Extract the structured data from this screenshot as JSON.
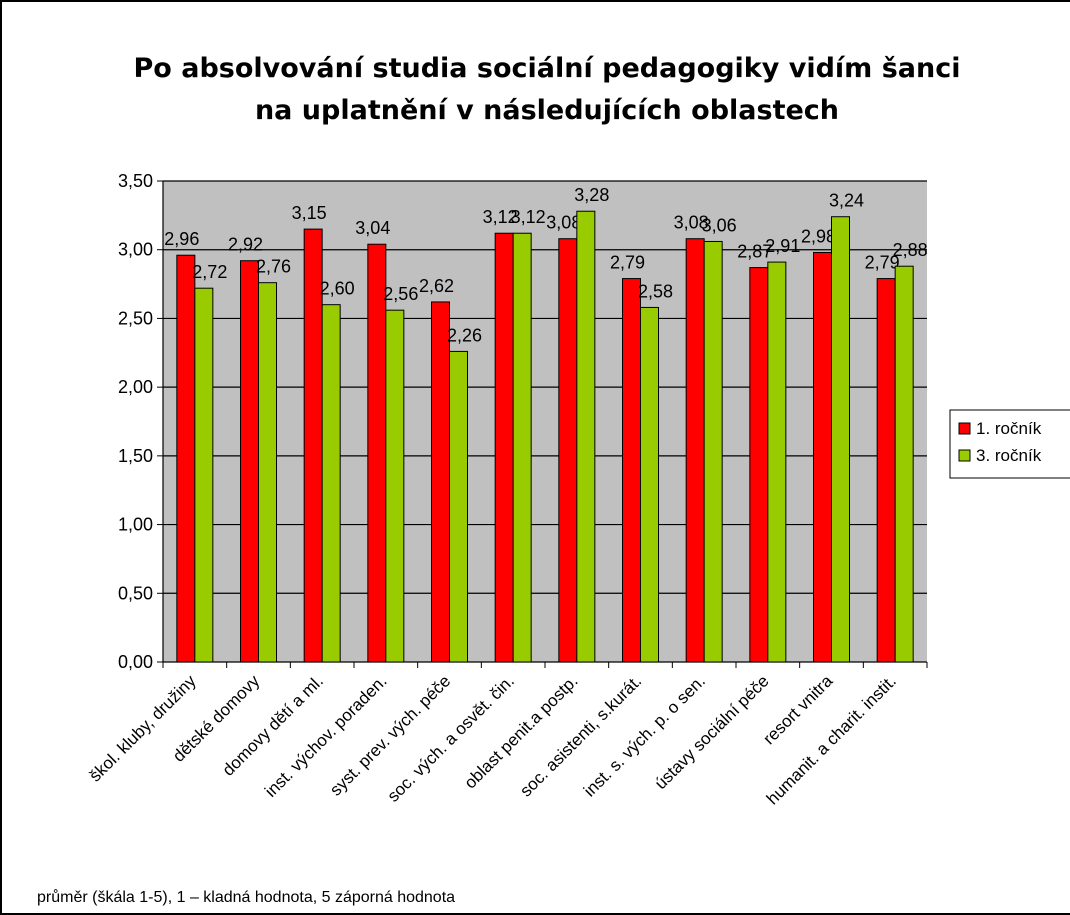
{
  "chart_data": {
    "type": "bar",
    "title_lines": [
      "Po absolvování studia sociální pedagogiky vidím šanci",
      "na uplatnění v následujících oblastech"
    ],
    "categories": [
      "škol. kluby, družiny",
      "dětské domovy",
      "domovy dětí a ml.",
      "inst. výchov. poraden.",
      "syst. prev. vých. péče",
      "soc. vých. a osvět. čin.",
      "oblast penit.a postp.",
      "soc. asistenti, s.kurát.",
      "inst. s. vých. p. o sen.",
      "ústavy sociální péče",
      "resort vnitra",
      "humanit. a charit. instit."
    ],
    "series": [
      {
        "name": "1. ročník",
        "color": "#ff0000",
        "values": [
          2.96,
          2.92,
          3.15,
          3.04,
          2.62,
          3.12,
          3.08,
          2.79,
          3.08,
          2.87,
          2.98,
          2.79
        ],
        "labels": [
          "2,96",
          "2,92",
          "3,15",
          "3,04",
          "2,62",
          "3,12",
          "3,08",
          "2,79",
          "3,08",
          "2,87",
          "2,98",
          "2,79"
        ]
      },
      {
        "name": "3. ročník",
        "color": "#99cc00",
        "values": [
          2.72,
          2.76,
          2.6,
          2.56,
          2.26,
          3.12,
          3.28,
          2.58,
          3.06,
          2.91,
          3.24,
          2.88
        ],
        "labels": [
          "2,72",
          "2,76",
          "2,60",
          "2,56",
          "2,26",
          "3,12",
          "3,28",
          "2,58",
          "3,06",
          "2,91",
          "3,24",
          "2,88"
        ]
      }
    ],
    "ylim": [
      0,
      3.5
    ],
    "yticks": [
      0,
      0.5,
      1.0,
      1.5,
      2.0,
      2.5,
      3.0,
      3.5
    ],
    "ytick_labels": [
      "0,00",
      "0,50",
      "1,00",
      "1,50",
      "2,00",
      "2,50",
      "3,00",
      "3,50"
    ],
    "plot_background": "#c0c0c0",
    "grid": true,
    "legend_position": "right"
  },
  "footnote": "průměr (škála 1-5), 1 – kladná hodnota, 5 záporná hodnota"
}
